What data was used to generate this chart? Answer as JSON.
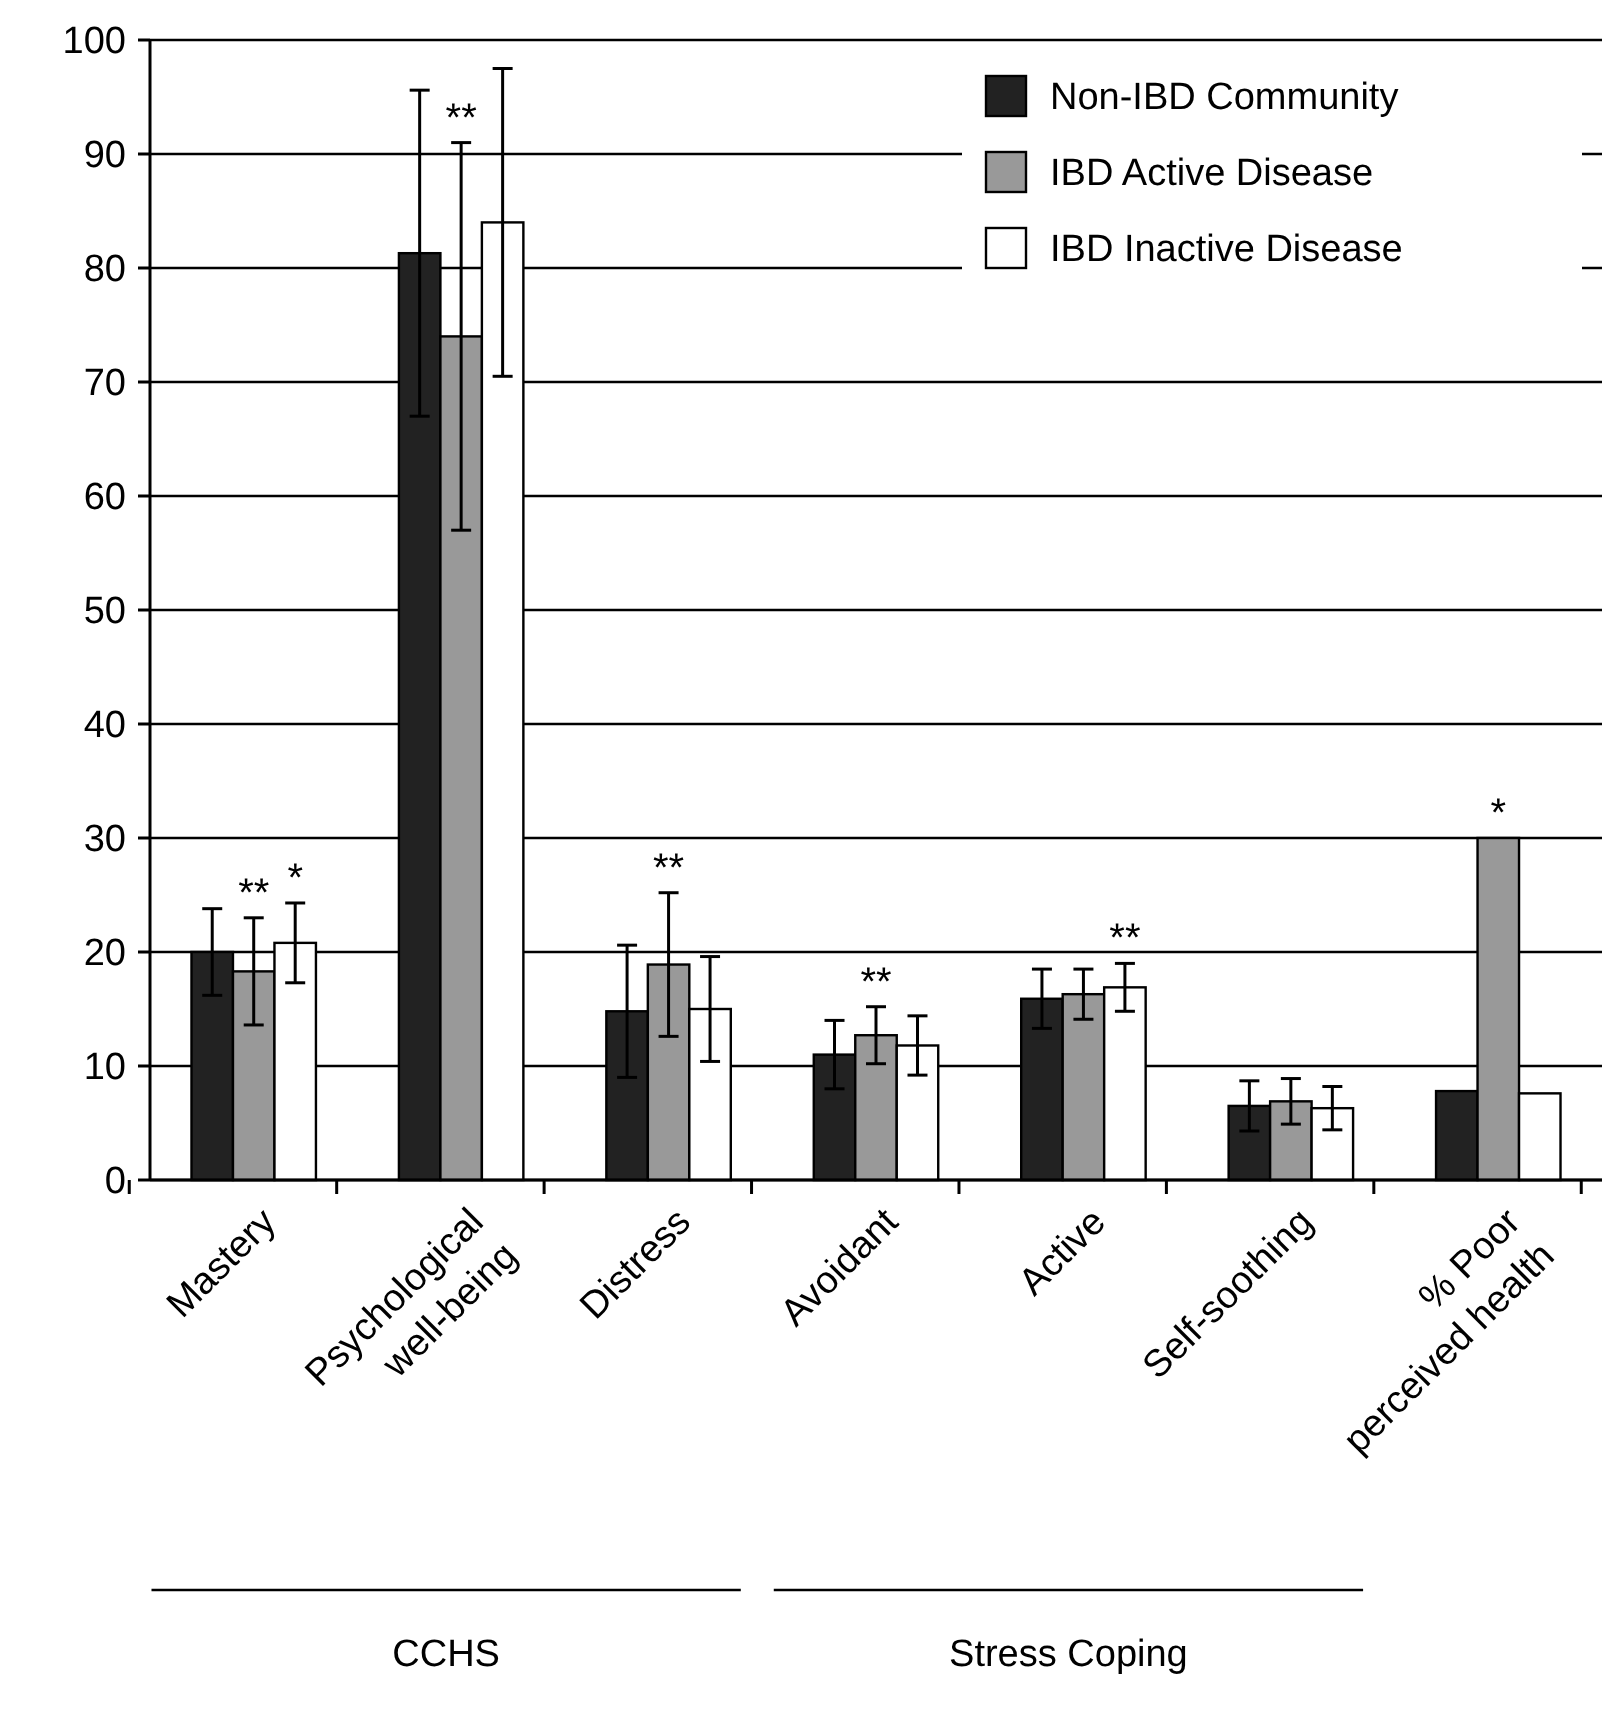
{
  "chart_data": {
    "type": "bar",
    "categories": [
      "Mastery",
      "Psychological\nwell-being",
      "Distress",
      "Avoidant",
      "Active",
      "Self-soothing",
      "% Poor\nperceived health"
    ],
    "series": [
      {
        "name": "Non-IBD Community",
        "color": "#222222",
        "values": [
          20,
          81.3,
          14.8,
          11,
          15.9,
          6.5,
          7.8
        ],
        "errors": [
          3.8,
          14.3,
          5.8,
          3,
          2.6,
          2.2,
          null
        ]
      },
      {
        "name": "IBD Active Disease",
        "color": "#999999",
        "values": [
          18.3,
          74,
          18.9,
          12.7,
          16.3,
          6.9,
          30
        ],
        "errors": [
          4.7,
          17,
          6.3,
          2.5,
          2.2,
          2,
          null
        ]
      },
      {
        "name": "IBD Inactive Disease",
        "color": "#ffffff",
        "values": [
          20.8,
          84,
          15,
          11.8,
          16.9,
          6.3,
          7.6
        ],
        "errors": [
          3.5,
          13.5,
          4.6,
          2.6,
          2.1,
          1.9,
          null
        ]
      }
    ],
    "ylim": [
      0,
      100
    ],
    "yticks": [
      0,
      10,
      20,
      30,
      40,
      50,
      60,
      70,
      80,
      90,
      100
    ],
    "grid": "y",
    "legend": "top right",
    "annotations": [
      {
        "text": "**",
        "x": "Mastery",
        "y": 18.3
      },
      {
        "text": "*",
        "x": "Mastery",
        "y": 20.8
      },
      "**",
      {
        "text": "**",
        "x": "Distress",
        "y": 18.9
      },
      {
        "text": "**",
        "x": "Avoidant",
        "y": 12.7
      },
      {
        "text": "**",
        "x": "Active",
        "y": 16.9
      },
      "*",
      "CCHS",
      "Stress Coping"
    ]
  }
}
